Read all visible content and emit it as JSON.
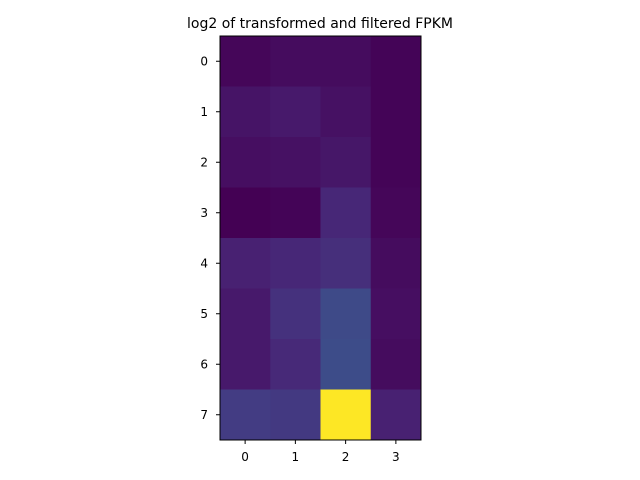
{
  "chart_data": {
    "type": "heatmap",
    "title": "log2 of transformed and filtered FPKM",
    "xlabel": "",
    "ylabel": "",
    "x_categories": [
      "0",
      "1",
      "2",
      "3"
    ],
    "y_categories": [
      "0",
      "1",
      "2",
      "3",
      "4",
      "5",
      "6",
      "7"
    ],
    "values": [
      [
        0.02,
        0.04,
        0.04,
        0.01
      ],
      [
        0.07,
        0.09,
        0.06,
        0.01
      ],
      [
        0.05,
        0.06,
        0.08,
        0.01
      ],
      [
        0.0,
        0.01,
        0.14,
        0.02
      ],
      [
        0.12,
        0.14,
        0.17,
        0.04
      ],
      [
        0.09,
        0.18,
        0.28,
        0.05
      ],
      [
        0.09,
        0.15,
        0.29,
        0.04
      ],
      [
        0.22,
        0.21,
        1.0,
        0.12
      ]
    ],
    "value_range": [
      0,
      1
    ],
    "colormap": "viridis",
    "grid": false,
    "legend": "none"
  }
}
